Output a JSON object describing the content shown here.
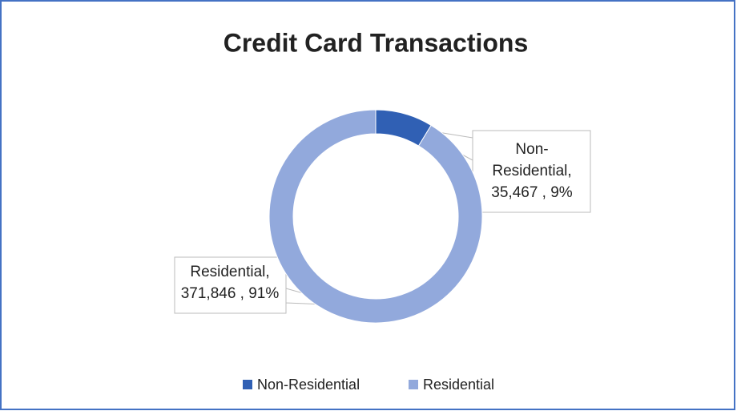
{
  "chart_data": {
    "type": "donut",
    "title": "Credit Card Transactions",
    "categories": [
      "Non-Residential",
      "Residential"
    ],
    "values": [
      35467,
      371846
    ],
    "value_labels": [
      "35,467",
      "371,846"
    ],
    "data_labels": [
      [
        "Non-",
        "Residential,",
        "35,467 ,   9%"
      ],
      [
        "Residential,",
        "371,846 , 91%"
      ]
    ],
    "colors": [
      "#3060b4",
      "#92a9dc"
    ],
    "legend": "bottom"
  }
}
